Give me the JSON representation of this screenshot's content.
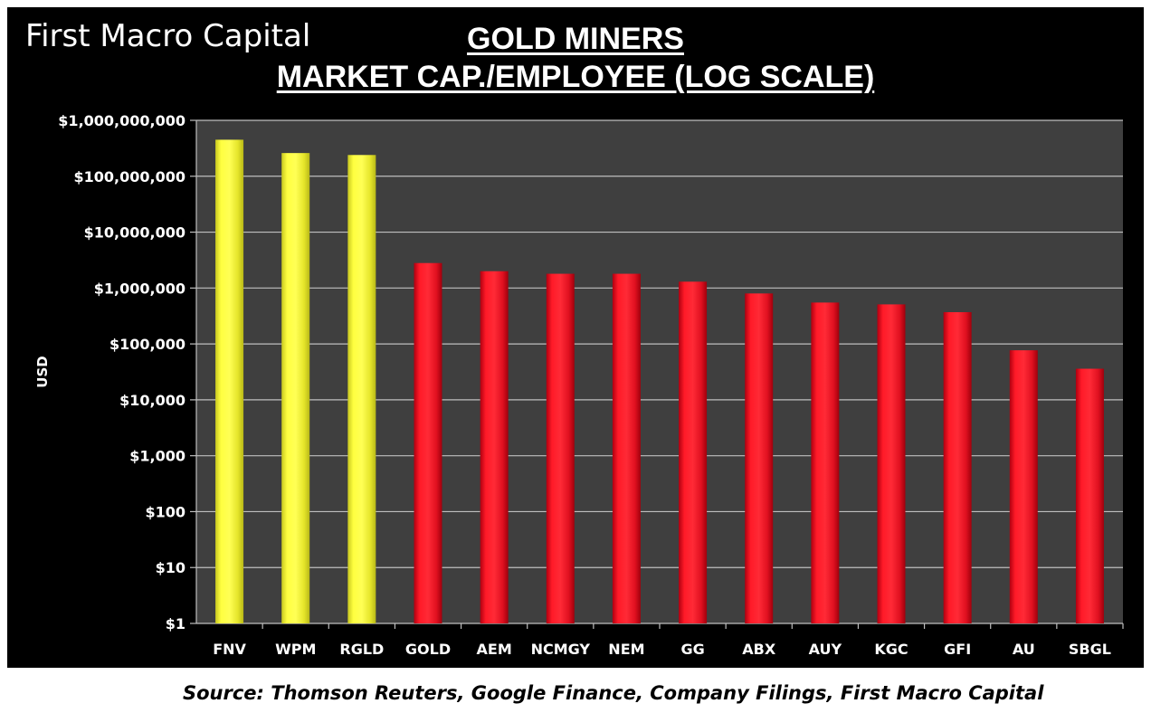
{
  "brand": "First Macro Capital",
  "source": "Source: Thomson Reuters, Google Finance, Company Filings, First Macro Capital",
  "colors": {
    "background": "#000000",
    "plot_area": "#3f3f3f",
    "gridline": "#bfbfbf",
    "royalty_bar": "#ffff33",
    "miner_bar": "#ff1020",
    "text": "#ffffff"
  },
  "chart_data": {
    "type": "bar",
    "title": "GOLD MINERS",
    "subtitle": "MARKET CAP./EMPLOYEE (LOG SCALE)",
    "xlabel": "",
    "ylabel": "USD",
    "yscale": "log",
    "ylim": [
      1,
      1000000000
    ],
    "yticks": [
      1,
      10,
      100,
      1000,
      10000,
      100000,
      1000000,
      10000000,
      100000000,
      1000000000
    ],
    "ytick_labels": [
      "$1",
      "$10",
      "$100",
      "$1,000",
      "$10,000",
      "$100,000",
      "$1,000,000",
      "$10,000,000",
      "$100,000,000",
      "$1,000,000,000"
    ],
    "grid": true,
    "legend": "none",
    "categories": [
      "FNV",
      "WPM",
      "RGLD",
      "GOLD",
      "AEM",
      "NCMGY",
      "NEM",
      "GG",
      "ABX",
      "AUY",
      "KGC",
      "GFI",
      "AU",
      "SBGL"
    ],
    "values": [
      450000000,
      260000000,
      240000000,
      2800000,
      2000000,
      1800000,
      1800000,
      1300000,
      800000,
      550000,
      510000,
      370000,
      77000,
      36000
    ],
    "bar_colors": [
      "#ffff33",
      "#ffff33",
      "#ffff33",
      "#ff1020",
      "#ff1020",
      "#ff1020",
      "#ff1020",
      "#ff1020",
      "#ff1020",
      "#ff1020",
      "#ff1020",
      "#ff1020",
      "#ff1020",
      "#ff1020"
    ]
  }
}
